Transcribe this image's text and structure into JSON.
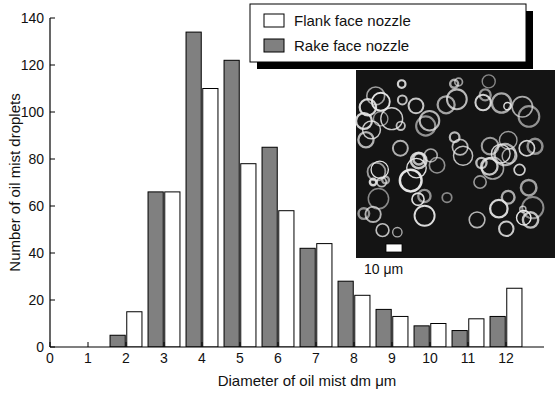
{
  "chart_data": {
    "type": "bar",
    "xlabel": "Diameter of oil mist dm  μm",
    "ylabel": "Number of oil mist droplets",
    "x": [
      2,
      3,
      4,
      5,
      6,
      7,
      8,
      9,
      10,
      11,
      12
    ],
    "series": [
      {
        "name": "Flank face nozzle",
        "color": "#ffffff",
        "values": [
          15,
          66,
          110,
          78,
          58,
          44,
          22,
          13,
          10,
          12,
          25
        ]
      },
      {
        "name": "Rake face nozzle",
        "color": "#808080",
        "values": [
          5,
          66,
          134,
          122,
          85,
          42,
          28,
          16,
          9,
          7,
          13
        ]
      }
    ],
    "xlim": [
      0,
      13
    ],
    "xticks": [
      0,
      1,
      2,
      3,
      4,
      5,
      6,
      7,
      8,
      9,
      10,
      11,
      12
    ],
    "ylim": [
      0,
      140
    ],
    "yticks": [
      0,
      20,
      40,
      60,
      80,
      100,
      120,
      140
    ],
    "grid": false,
    "legend": "upper right",
    "annotations": [
      "10 μm"
    ]
  }
}
